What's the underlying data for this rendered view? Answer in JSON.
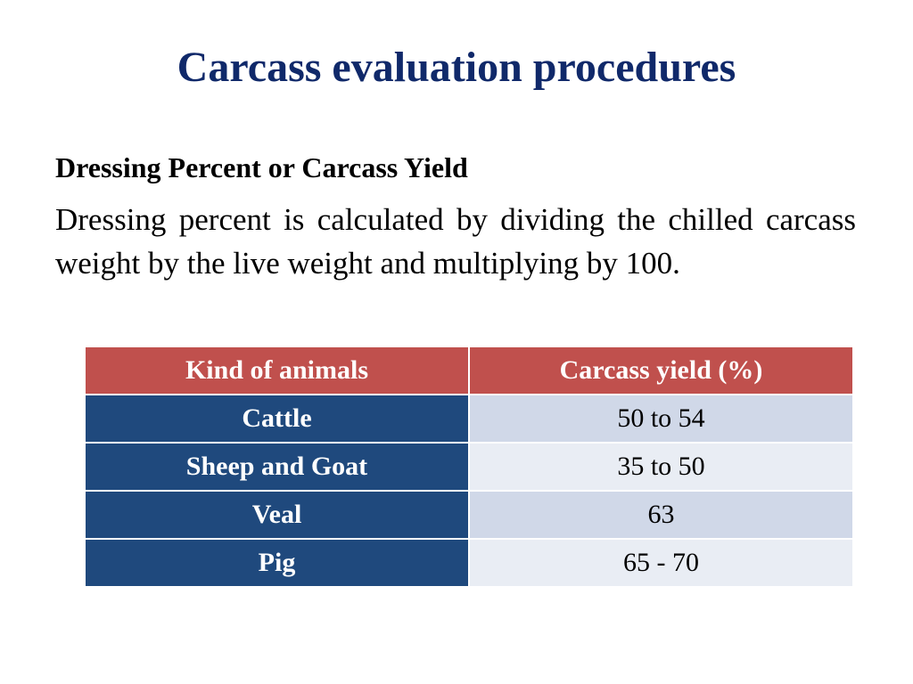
{
  "slide": {
    "title": "Carcass evaluation procedures",
    "section_heading": "Dressing Percent or Carcass Yield",
    "body": "Dressing percent is calculated by dividing the chilled carcass weight by the live weight and multiplying by 100."
  },
  "table": {
    "headers": {
      "kind": "Kind of animals",
      "yield": "Carcass yield (%)"
    },
    "rows": [
      {
        "kind": "Cattle",
        "yield": "50 to 54"
      },
      {
        "kind": "Sheep and Goat",
        "yield": "35 to 50"
      },
      {
        "kind": "Veal",
        "yield": "63"
      },
      {
        "kind": "Pig",
        "yield": "65 - 70"
      }
    ]
  },
  "colors": {
    "title": "#10296a",
    "header_bg": "#c0504d",
    "kind_col_bg": "#1f497d",
    "row_odd_bg": "#d0d8e8",
    "row_even_bg": "#e9edf4"
  }
}
